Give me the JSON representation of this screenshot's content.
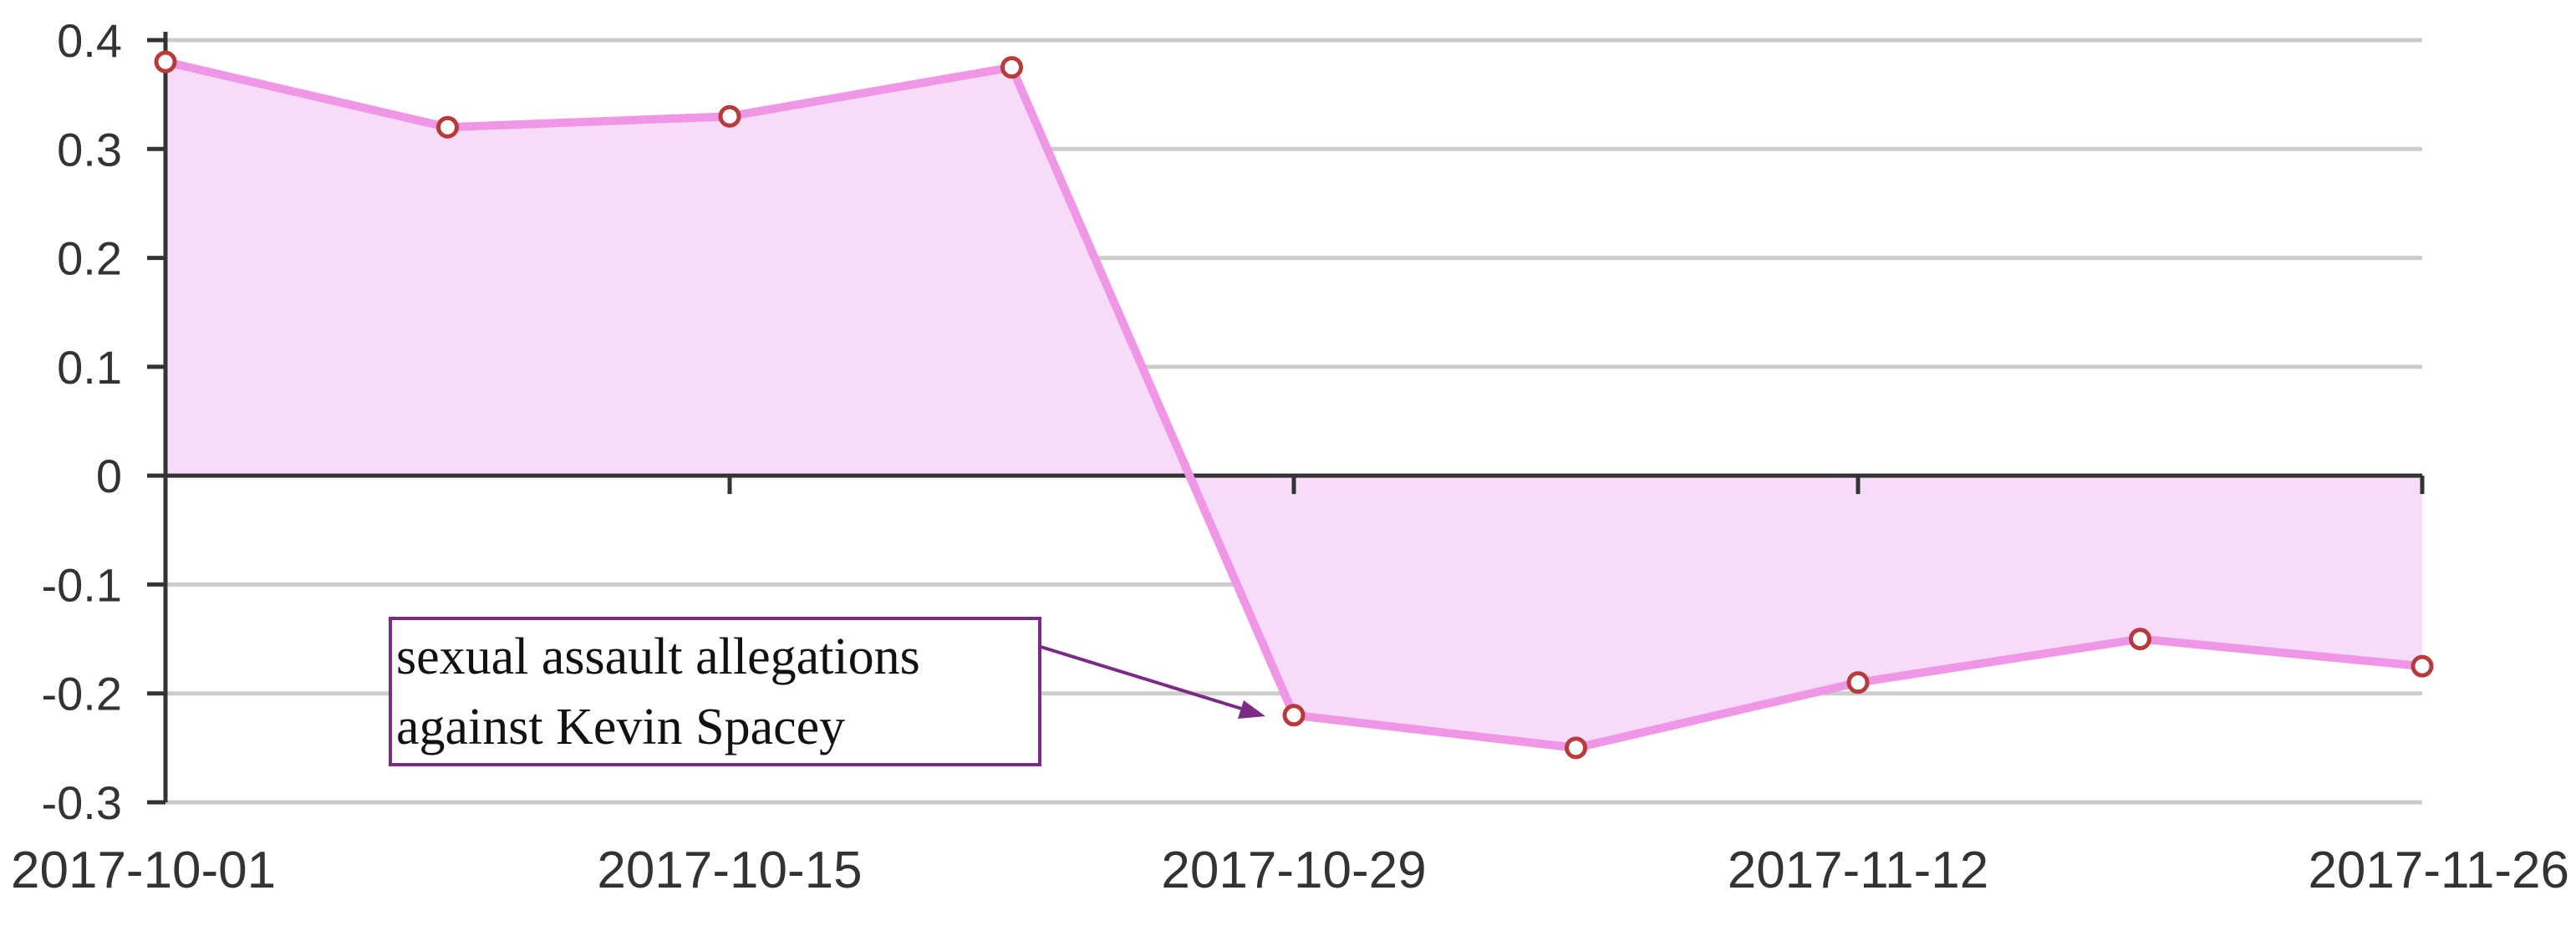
{
  "chart_data": {
    "type": "area",
    "title": "",
    "xlabel": "",
    "ylabel": "",
    "x": [
      "2017-10-01",
      "2017-10-08",
      "2017-10-15",
      "2017-10-22",
      "2017-10-29",
      "2017-11-05",
      "2017-11-12",
      "2017-11-19",
      "2017-11-26"
    ],
    "series": [
      {
        "values": [
          0.38,
          0.32,
          0.33,
          0.375,
          -0.22,
          -0.25,
          -0.19,
          -0.15,
          -0.175
        ]
      }
    ],
    "ylim": [
      -0.3,
      0.4
    ],
    "xlim": [
      "2017-10-01",
      "2017-11-26"
    ],
    "y_ticks": [
      "0.4",
      "0.3",
      "0.2",
      "0.1",
      "0",
      "-0.1",
      "-0.2",
      "-0.3"
    ],
    "x_ticks": [
      "2017-10-01",
      "2017-10-15",
      "2017-10-29",
      "2017-11-12",
      "2017-11-26"
    ],
    "grid": true,
    "legend": "none",
    "colors": {
      "line": "#ef97e6",
      "area": "#f7dcf9",
      "marker_stroke": "#b83a3a",
      "annotation": "#7b2a86"
    },
    "annotation": {
      "text_lines": [
        "sexual assault allegations",
        "against Kevin Spacey"
      ],
      "x": "2017-10-29",
      "y": -0.22
    }
  }
}
